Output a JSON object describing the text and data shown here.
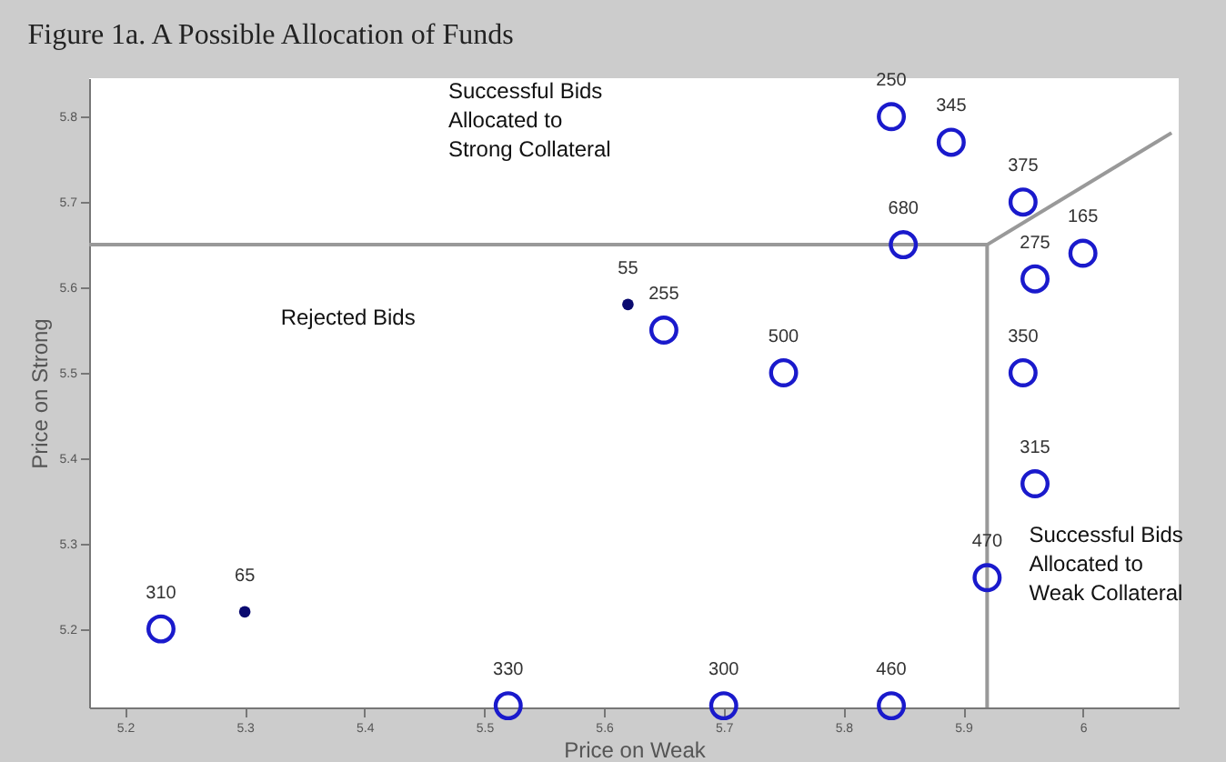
{
  "chart_data": {
    "type": "scatter",
    "title": "Figure 1a. A Possible Allocation of Funds",
    "xlabel": "Price on Weak",
    "ylabel": "Price on Strong",
    "xlim": [
      5.17,
      6.08
    ],
    "ylim": [
      5.108,
      5.845
    ],
    "xticks": [
      5.2,
      5.3,
      5.4,
      5.5,
      5.6,
      5.7,
      5.8,
      5.9,
      6.0
    ],
    "yticks": [
      5.2,
      5.3,
      5.4,
      5.5,
      5.6,
      5.7,
      5.8
    ],
    "grid": false,
    "annotations": [
      "Successful Bids\nAllocated to\nStrong Collateral",
      "Rejected Bids",
      "Successful Bids\nAllocated to\nWeak Collateral",
      {
        "text": "310",
        "x": 5.23,
        "y": 5.2
      },
      {
        "text": "330",
        "x": 5.52,
        "y": 5.11
      },
      {
        "text": "300",
        "x": 5.7,
        "y": 5.11
      },
      {
        "text": "460",
        "x": 5.84,
        "y": 5.11
      },
      {
        "text": "500",
        "x": 5.75,
        "y": 5.5
      },
      {
        "text": "255",
        "x": 5.65,
        "y": 5.55
      },
      {
        "text": "250",
        "x": 5.84,
        "y": 5.8
      },
      {
        "text": "345",
        "x": 5.89,
        "y": 5.77
      },
      {
        "text": "375",
        "x": 5.95,
        "y": 5.7
      },
      {
        "text": "680",
        "x": 5.85,
        "y": 5.65
      },
      {
        "text": "165",
        "x": 6.0,
        "y": 5.64
      },
      {
        "text": "275",
        "x": 5.96,
        "y": 5.61
      },
      {
        "text": "350",
        "x": 5.95,
        "y": 5.5
      },
      {
        "text": "315",
        "x": 5.96,
        "y": 5.37
      },
      {
        "text": "470",
        "x": 5.92,
        "y": 5.26
      },
      {
        "text": "65",
        "x": 5.3,
        "y": 5.22
      },
      {
        "text": "55",
        "x": 5.62,
        "y": 5.58
      }
    ],
    "series": [
      {
        "marker": "circle",
        "color": "#1a1acc",
        "x": [
          5.23,
          5.52,
          5.7,
          5.84,
          5.75,
          5.65,
          5.84,
          5.89,
          5.95,
          5.85,
          6.0,
          5.96,
          5.95,
          5.96,
          5.92
        ],
        "values": [
          5.2,
          5.11,
          5.11,
          5.11,
          5.5,
          5.55,
          5.8,
          5.77,
          5.7,
          5.65,
          5.64,
          5.61,
          5.5,
          5.37,
          5.26
        ]
      },
      {
        "marker": "circle",
        "color": "#0a0a70",
        "x": [
          5.3,
          5.62
        ],
        "values": [
          5.22,
          5.58
        ]
      },
      {
        "type": "line",
        "color": "#999999",
        "x": [
          5.17,
          5.92,
          5.92
        ],
        "values": [
          5.65,
          5.65,
          5.108
        ]
      },
      {
        "type": "line",
        "color": "#999999",
        "x": [
          5.92,
          6.074
        ],
        "values": [
          5.65,
          5.781
        ]
      }
    ]
  }
}
